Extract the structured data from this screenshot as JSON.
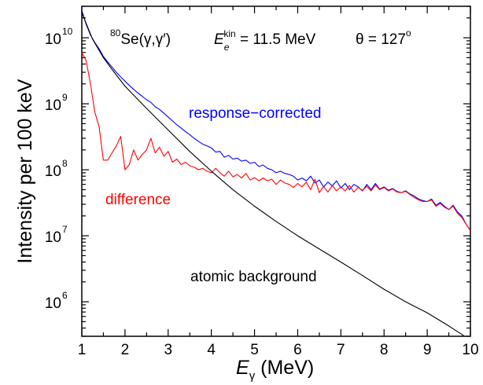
{
  "chart_data": {
    "type": "line",
    "title": "",
    "xlabel": {
      "main": "E",
      "sub": "γ",
      "unit": " (MeV)"
    },
    "ylabel": "Intensity per 100 keV",
    "xlim": [
      1,
      10
    ],
    "ylim": [
      300000,
      30000000000
    ],
    "yscale": "log",
    "grid": false,
    "x_ticks": [
      "1",
      "2",
      "3",
      "4",
      "5",
      "6",
      "7",
      "8",
      "9",
      "10"
    ],
    "y_ticks": [
      {
        "base": "10",
        "exp": "6",
        "value": 1000000
      },
      {
        "base": "10",
        "exp": "7",
        "value": 10000000
      },
      {
        "base": "10",
        "exp": "8",
        "value": 100000000
      },
      {
        "base": "10",
        "exp": "9",
        "value": 1000000000
      },
      {
        "base": "10",
        "exp": "10",
        "value": 10000000000
      }
    ],
    "annotation": {
      "reaction_sup": "80",
      "reaction": "Se(γ,γ′)",
      "energy_main": "E",
      "energy_sub": "e",
      "energy_sup": "kin",
      "energy_value": " = 11.5 MeV",
      "angle": "θ = 127",
      "angle_sup": "o"
    },
    "series": [
      {
        "name": "response-corrected",
        "color": "#0000ff",
        "x": [
          1.0,
          1.1,
          1.2,
          1.3,
          1.4,
          1.5,
          1.6,
          1.7,
          1.8,
          1.9,
          2.0,
          2.1,
          2.2,
          2.3,
          2.4,
          2.5,
          2.6,
          2.7,
          2.8,
          2.9,
          3.0,
          3.1,
          3.2,
          3.3,
          3.4,
          3.5,
          3.6,
          3.7,
          3.8,
          3.9,
          4.0,
          4.1,
          4.2,
          4.3,
          4.4,
          4.5,
          4.6,
          4.7,
          4.8,
          4.9,
          5.0,
          5.1,
          5.2,
          5.3,
          5.4,
          5.5,
          5.6,
          5.7,
          5.8,
          5.9,
          6.0,
          6.1,
          6.2,
          6.3,
          6.4,
          6.5,
          6.6,
          6.7,
          6.8,
          6.9,
          7.0,
          7.1,
          7.2,
          7.3,
          7.4,
          7.5,
          7.6,
          7.7,
          7.8,
          7.9,
          8.0,
          8.1,
          8.2,
          8.3,
          8.4,
          8.5,
          8.6,
          8.7,
          8.8,
          8.9,
          9.0,
          9.1,
          9.2,
          9.3,
          9.4,
          9.5,
          9.6,
          9.7,
          9.8,
          9.9,
          10.0
        ],
        "y": [
          26000000000.0,
          16000000000.0,
          11000000000.0,
          8500000000.0,
          6800000000.0,
          5200000000.0,
          4300000000.0,
          3600000000.0,
          3000000000.0,
          2550000000.0,
          2200000000.0,
          1900000000.0,
          1650000000.0,
          1450000000.0,
          1300000000.0,
          1150000000.0,
          1050000000.0,
          900000000.0,
          820000000.0,
          720000000.0,
          630000000.0,
          550000000.0,
          480000000.0,
          430000000.0,
          380000000.0,
          340000000.0,
          300000000.0,
          270000000.0,
          245000000.0,
          230000000.0,
          215000000.0,
          185000000.0,
          190000000.0,
          155000000.0,
          165000000.0,
          145000000.0,
          150000000.0,
          135000000.0,
          140000000.0,
          125000000.0,
          130000000.0,
          112000000.0,
          118000000.0,
          105000000.0,
          100000000.0,
          90000000.0,
          95000000.0,
          88000000.0,
          85000000.0,
          80000000.0,
          70000000.0,
          75000000.0,
          68000000.0,
          80000000.0,
          63000000.0,
          70000000.0,
          55000000.0,
          65000000.0,
          57000000.0,
          68000000.0,
          53000000.0,
          62000000.0,
          50000000.0,
          60000000.0,
          55000000.0,
          48000000.0,
          60000000.0,
          50000000.0,
          62000000.0,
          51000000.0,
          55000000.0,
          49000000.0,
          52000000.0,
          47000000.0,
          45000000.0,
          48000000.0,
          43000000.0,
          40000000.0,
          36000000.0,
          34000000.0,
          33000000.0,
          36000000.0,
          29000000.0,
          32000000.0,
          28000000.0,
          25000000.0,
          29000000.0,
          23000000.0,
          20000000.0,
          15000000.0,
          12000000.0
        ]
      },
      {
        "name": "difference",
        "color": "#ff0000",
        "x": [
          1.0,
          1.1,
          1.2,
          1.3,
          1.4,
          1.5,
          1.6,
          1.7,
          1.8,
          1.9,
          2.0,
          2.1,
          2.2,
          2.3,
          2.4,
          2.5,
          2.6,
          2.7,
          2.8,
          2.9,
          3.0,
          3.1,
          3.2,
          3.3,
          3.4,
          3.5,
          3.6,
          3.7,
          3.8,
          3.9,
          4.0,
          4.1,
          4.2,
          4.3,
          4.4,
          4.5,
          4.6,
          4.7,
          4.8,
          4.9,
          5.0,
          5.1,
          5.2,
          5.3,
          5.4,
          5.5,
          5.6,
          5.7,
          5.8,
          5.9,
          6.0,
          6.1,
          6.2,
          6.3,
          6.4,
          6.5,
          6.6,
          6.7,
          6.8,
          6.9,
          7.0,
          7.1,
          7.2,
          7.3,
          7.4,
          7.5,
          7.6,
          7.7,
          7.8,
          7.9,
          8.0,
          8.1,
          8.2,
          8.3,
          8.4,
          8.5,
          8.6,
          8.7,
          8.8,
          8.9,
          9.0,
          9.1,
          9.2,
          9.3,
          9.4,
          9.5,
          9.6,
          9.7,
          9.8,
          9.9,
          10.0
        ],
        "y": [
          6000000000.0,
          4500000000.0,
          2000000000.0,
          750000000.0,
          450000000.0,
          140000000.0,
          140000000.0,
          180000000.0,
          230000000.0,
          320000000.0,
          100000000.0,
          120000000.0,
          200000000.0,
          140000000.0,
          170000000.0,
          200000000.0,
          300000000.0,
          180000000.0,
          220000000.0,
          160000000.0,
          190000000.0,
          130000000.0,
          145000000.0,
          120000000.0,
          130000000.0,
          115000000.0,
          110000000.0,
          100000000.0,
          105000000.0,
          95000000.0,
          90000000.0,
          105000000.0,
          90000000.0,
          80000000.0,
          95000000.0,
          78000000.0,
          85000000.0,
          75000000.0,
          88000000.0,
          70000000.0,
          76000000.0,
          68000000.0,
          75000000.0,
          68000000.0,
          72000000.0,
          60000000.0,
          70000000.0,
          63000000.0,
          60000000.0,
          54000000.0,
          62000000.0,
          55000000.0,
          65000000.0,
          50000000.0,
          72000000.0,
          45000000.0,
          56000000.0,
          46000000.0,
          58000000.0,
          48000000.0,
          55000000.0,
          48000000.0,
          58000000.0,
          46000000.0,
          54000000.0,
          49000000.0,
          56000000.0,
          48000000.0,
          59000000.0,
          50000000.0,
          54000000.0,
          48000000.0,
          51000000.0,
          46000000.0,
          45000000.0,
          47000000.0,
          42000000.0,
          38000000.0,
          35000000.0,
          33000000.0,
          33000000.0,
          35000000.0,
          28000000.0,
          31000000.0,
          27000000.0,
          25000000.0,
          28000000.0,
          22000000.0,
          19000000.0,
          15000000.0,
          12000000.0
        ]
      },
      {
        "name": "atomic background",
        "color": "#000000",
        "x": [
          1.0,
          1.25,
          1.5,
          1.75,
          2.0,
          2.5,
          3.0,
          3.5,
          4.0,
          4.5,
          5.0,
          5.5,
          6.0,
          6.5,
          7.0,
          7.5,
          8.0,
          8.5,
          9.0,
          9.5,
          9.8,
          10.0
        ],
        "y": [
          24000000000.0,
          9500000000.0,
          5000000000.0,
          3000000000.0,
          1850000000.0,
          850000000.0,
          400000000.0,
          190000000.0,
          95000000.0,
          50000000.0,
          28000000.0,
          16500000.0,
          10000000.0,
          6300000.0,
          4000000.0,
          2500000.0,
          1550000.0,
          1000000.0,
          680000.0,
          430000.0,
          320000.0,
          260000.0
        ]
      }
    ],
    "labels": [
      {
        "series": 0,
        "text": "response−corrected"
      },
      {
        "series": 1,
        "text": "difference"
      },
      {
        "series": 2,
        "text": "atomic background"
      }
    ]
  }
}
